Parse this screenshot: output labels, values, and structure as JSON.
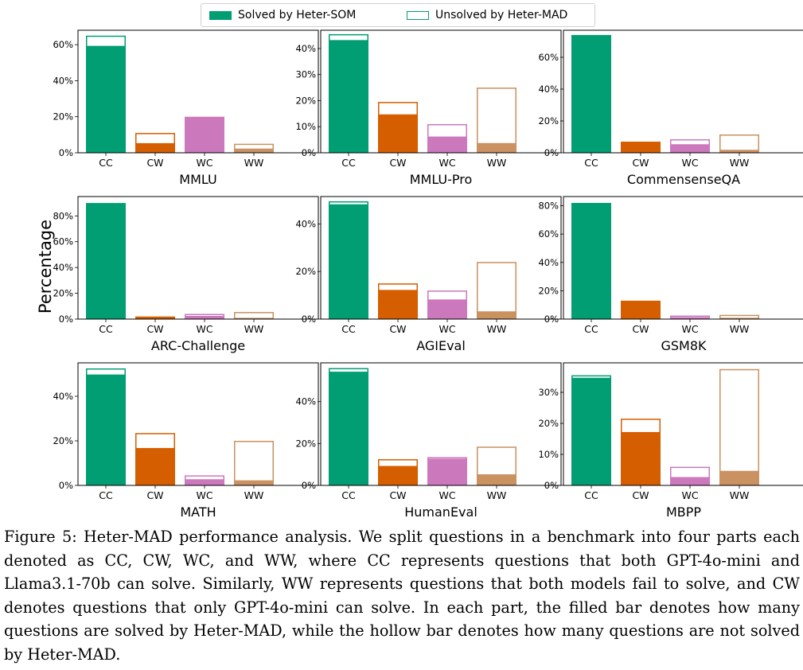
{
  "legend": {
    "solved_label": "Solved by Heter-SOM",
    "unsolved_label": "Unsolved by Heter-MAD"
  },
  "ylabel": "Percentage",
  "colors": {
    "CC": "#029e73",
    "CW": "#d55e00",
    "WC": "#cc78bc",
    "WW": "#ca9161",
    "legend_hollow": "#029e73"
  },
  "caption": "Figure 5: Heter-MAD performance analysis. We split questions in a benchmark into four parts each denoted as CC, CW, WC, and WW, where CC represents questions that both GPT-4o-mini and Llama3.1-70b can solve. Similarly, WW represents questions that both models fail to solve, and CW denotes questions that only GPT-4o-mini can solve. In each part, the filled bar denotes how many questions are solved by Heter-MAD, while the hollow bar denotes how many questions are not solved by Heter-MAD.",
  "chart_data": [
    {
      "type": "bar",
      "title": "MMLU",
      "categories": [
        "CC",
        "CW",
        "WC",
        "WW"
      ],
      "series": [
        {
          "name": "Solved by Heter-SOM",
          "values": [
            59,
            5,
            19,
            2
          ]
        },
        {
          "name": "Unsolved by Heter-MAD",
          "values": [
            6,
            6,
            1,
            3
          ]
        }
      ],
      "ylim": [
        0,
        68
      ],
      "ticks": [
        0,
        20,
        40,
        60
      ]
    },
    {
      "type": "bar",
      "title": "MMLU-Pro",
      "categories": [
        "CC",
        "CW",
        "WC",
        "WW"
      ],
      "series": [
        {
          "name": "Solved by Heter-SOM",
          "values": [
            43,
            14.5,
            6,
            3.5
          ]
        },
        {
          "name": "Unsolved by Heter-MAD",
          "values": [
            2.5,
            5,
            5,
            21.5
          ]
        }
      ],
      "ylim": [
        0,
        47
      ],
      "ticks": [
        0,
        10,
        20,
        30,
        40
      ]
    },
    {
      "type": "bar",
      "title": "CommensenseQA",
      "categories": [
        "CC",
        "CW",
        "WC",
        "WW"
      ],
      "series": [
        {
          "name": "Solved by Heter-SOM",
          "values": [
            74,
            6,
            5,
            1.5
          ]
        },
        {
          "name": "Unsolved by Heter-MAD",
          "values": [
            0,
            1,
            3.5,
            10
          ]
        }
      ],
      "ylim": [
        0,
        77
      ],
      "ticks": [
        0,
        20,
        40,
        60
      ]
    },
    {
      "type": "bar",
      "title": "ARC-Challenge",
      "categories": [
        "CC",
        "CW",
        "WC",
        "WW"
      ],
      "series": [
        {
          "name": "Solved by Heter-SOM",
          "values": [
            90,
            1.5,
            2,
            0.5
          ]
        },
        {
          "name": "Unsolved by Heter-MAD",
          "values": [
            0,
            0.5,
            2,
            5
          ]
        }
      ],
      "ylim": [
        0,
        95
      ],
      "ticks": [
        0,
        20,
        40,
        60,
        80
      ]
    },
    {
      "type": "bar",
      "title": "AGIEval",
      "categories": [
        "CC",
        "CW",
        "WC",
        "WW"
      ],
      "series": [
        {
          "name": "Solved by Heter-SOM",
          "values": [
            48,
            12,
            8,
            3
          ]
        },
        {
          "name": "Unsolved by Heter-MAD",
          "values": [
            1.5,
            3,
            4,
            21
          ]
        }
      ],
      "ylim": [
        0,
        51.5
      ],
      "ticks": [
        0,
        20,
        40
      ]
    },
    {
      "type": "bar",
      "title": "GSM8K",
      "categories": [
        "CC",
        "CW",
        "WC",
        "WW"
      ],
      "series": [
        {
          "name": "Solved by Heter-SOM",
          "values": [
            82,
            13,
            1,
            0.5
          ]
        },
        {
          "name": "Unsolved by Heter-MAD",
          "values": [
            0,
            0,
            1.5,
            2.5
          ]
        }
      ],
      "ylim": [
        0,
        86.5
      ],
      "ticks": [
        0,
        20,
        40,
        60,
        80
      ]
    },
    {
      "type": "bar",
      "title": "MATH",
      "categories": [
        "CC",
        "CW",
        "WC",
        "WW"
      ],
      "series": [
        {
          "name": "Solved by Heter-SOM",
          "values": [
            49.5,
            16.5,
            2.5,
            2
          ]
        },
        {
          "name": "Unsolved by Heter-MAD",
          "values": [
            3,
            7,
            2,
            18
          ]
        }
      ],
      "ylim": [
        0,
        55
      ],
      "ticks": [
        0,
        20,
        40
      ]
    },
    {
      "type": "bar",
      "title": "HumanEval",
      "categories": [
        "CC",
        "CW",
        "WC",
        "WW"
      ],
      "series": [
        {
          "name": "Solved by Heter-SOM",
          "values": [
            54,
            9,
            12.5,
            5
          ]
        },
        {
          "name": "Unsolved by Heter-MAD",
          "values": [
            2,
            3.5,
            1,
            13.5
          ]
        }
      ],
      "ylim": [
        0,
        58.5
      ],
      "ticks": [
        0,
        20,
        40
      ]
    },
    {
      "type": "bar",
      "title": "MBPP",
      "categories": [
        "CC",
        "CW",
        "WC",
        "WW"
      ],
      "series": [
        {
          "name": "Solved by Heter-SOM",
          "values": [
            34.5,
            17,
            2.5,
            4.5
          ]
        },
        {
          "name": "Unsolved by Heter-MAD",
          "values": [
            1,
            4.5,
            3.5,
            33
          ]
        }
      ],
      "ylim": [
        0,
        39.5
      ],
      "ticks": [
        0,
        10,
        20,
        30
      ]
    }
  ]
}
